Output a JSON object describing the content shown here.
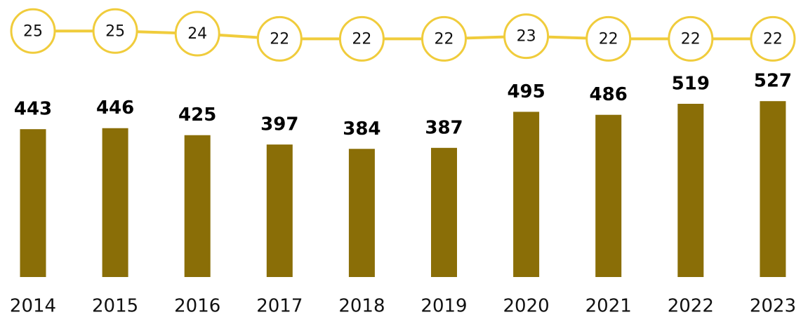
{
  "chart_data": {
    "type": "bar",
    "categories": [
      "2014",
      "2015",
      "2016",
      "2017",
      "2018",
      "2019",
      "2020",
      "2021",
      "2022",
      "2023"
    ],
    "series": [
      {
        "type": "bar",
        "color": "#8a6e07",
        "values": [
          443,
          446,
          425,
          397,
          384,
          387,
          495,
          486,
          519,
          527
        ]
      },
      {
        "type": "line",
        "axis": "y2",
        "color": "#f0cc3c",
        "values": [
          25,
          25,
          24,
          22,
          22,
          22,
          23,
          22,
          22,
          22
        ]
      }
    ],
    "ylim": [
      0,
      830
    ],
    "y2lim": [
      -70,
      37
    ]
  }
}
